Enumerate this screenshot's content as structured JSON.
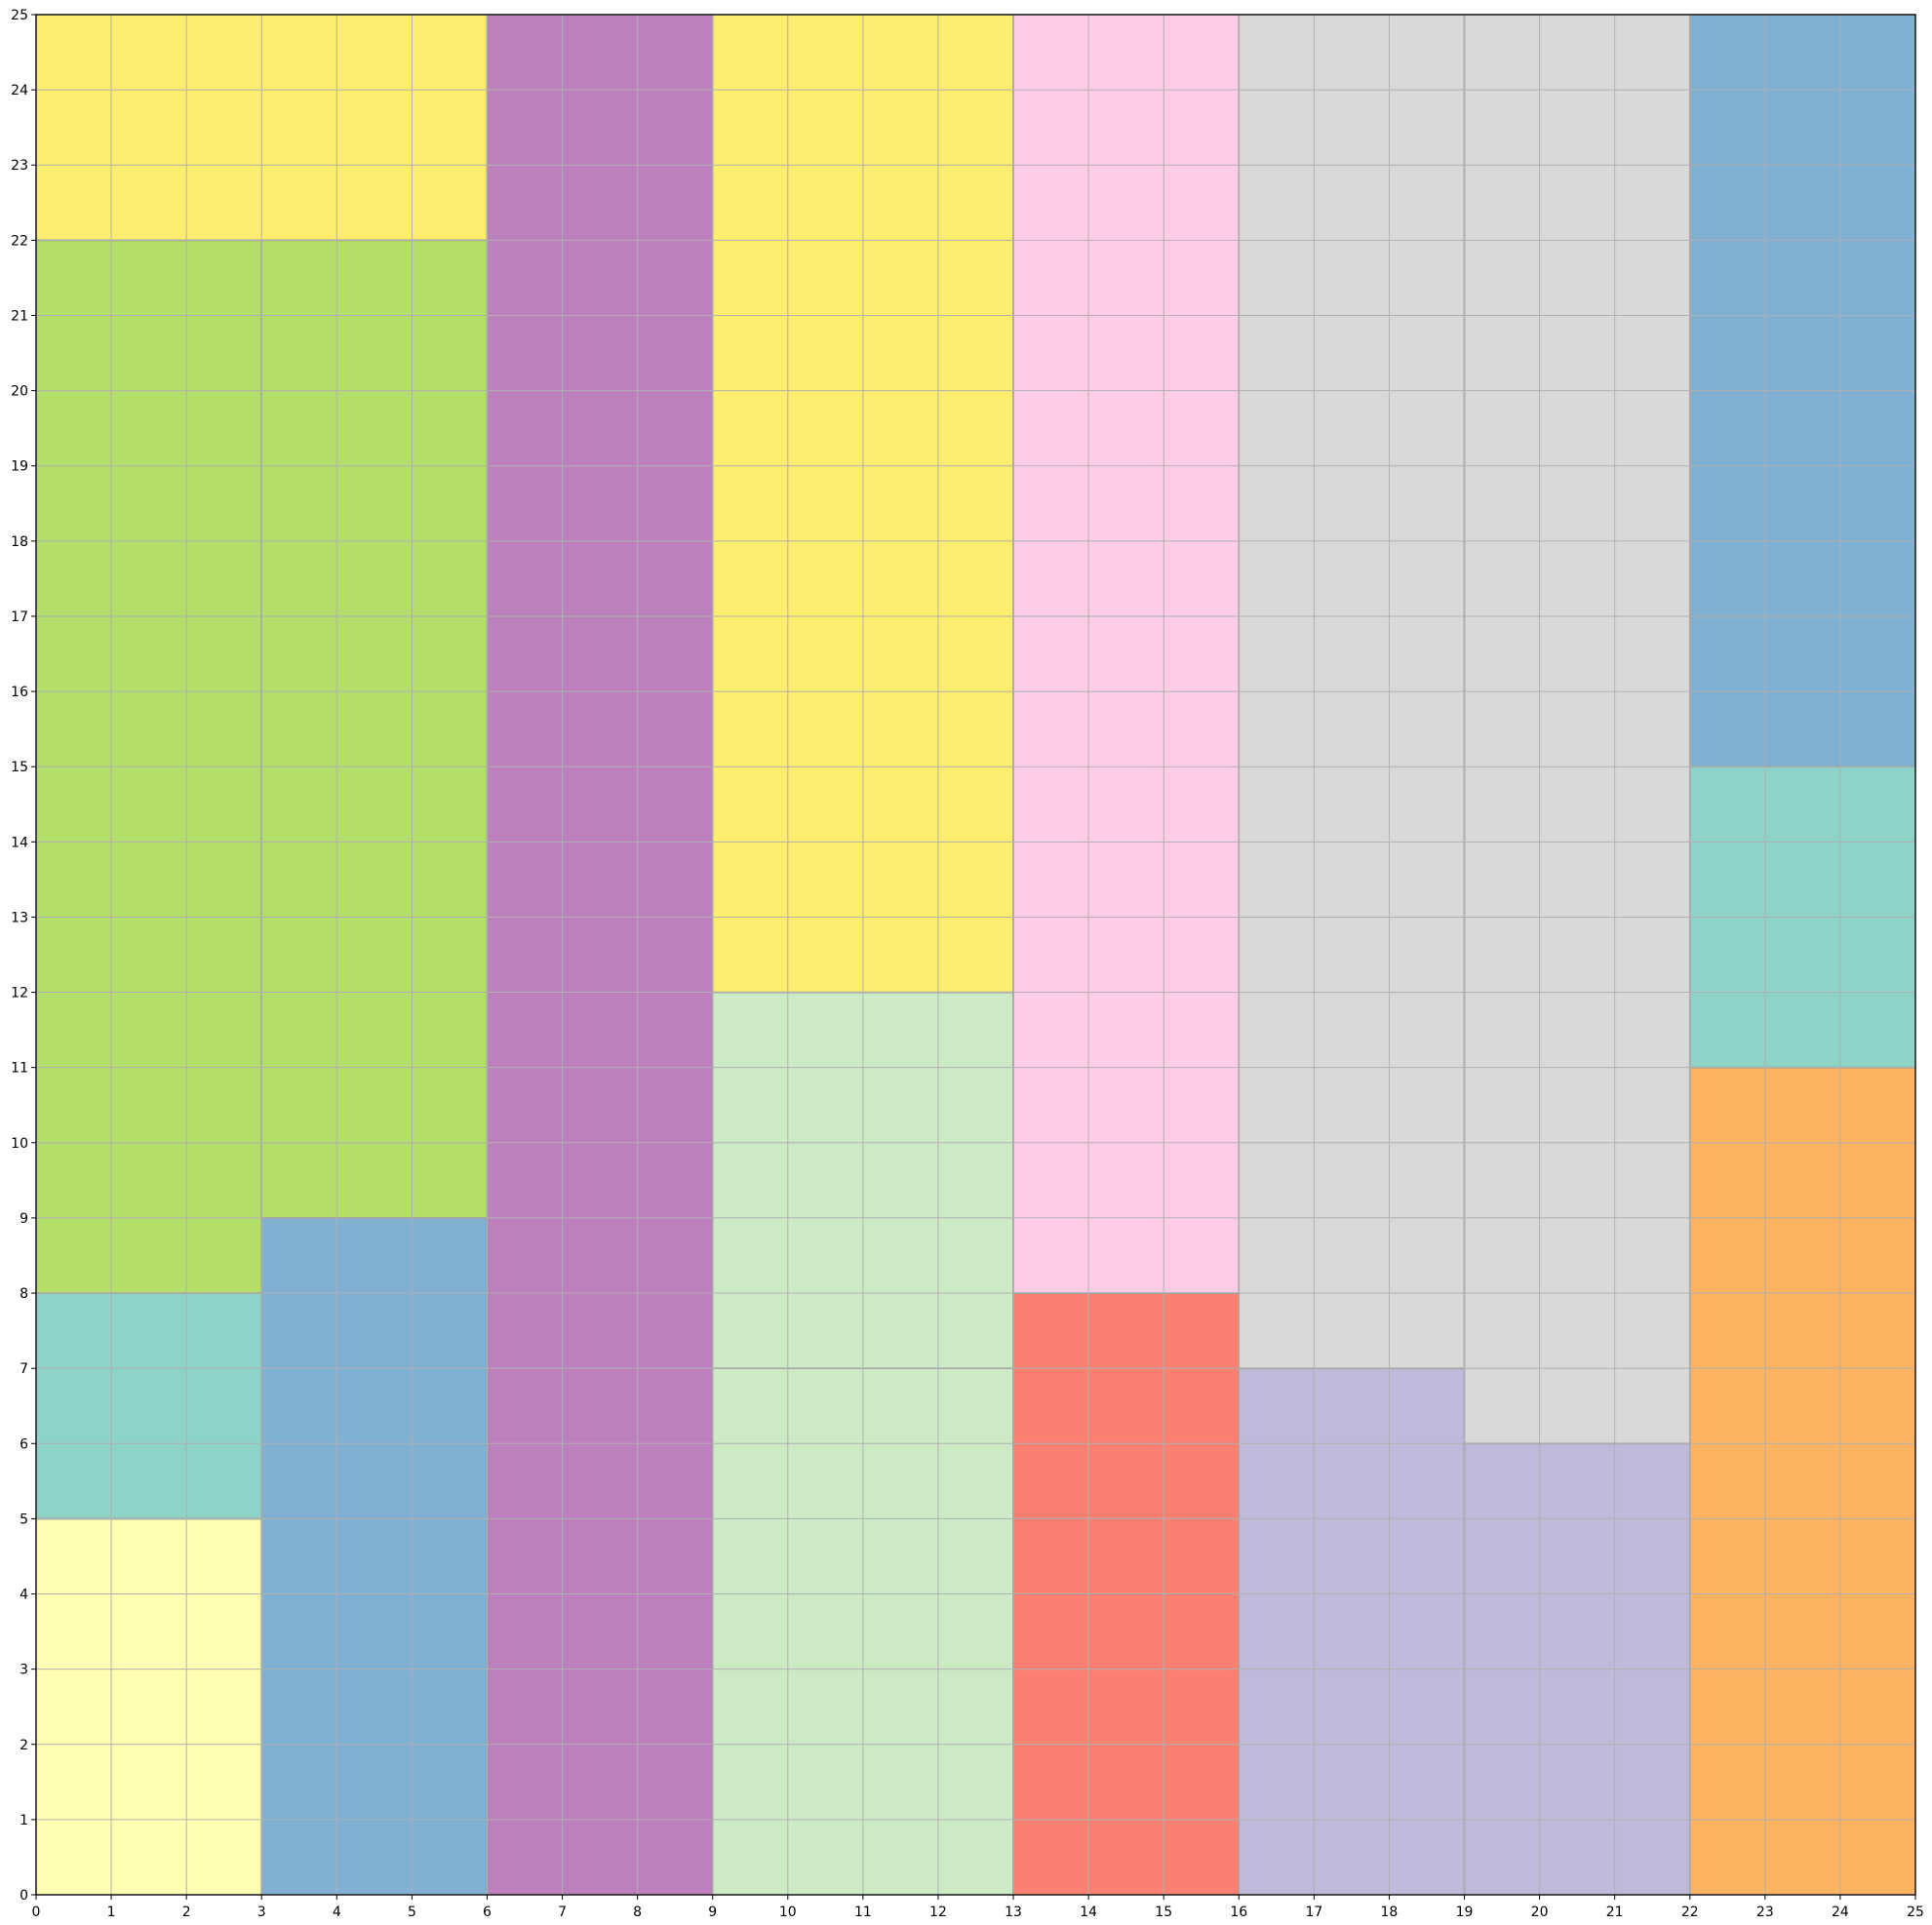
{
  "chart_data": {
    "type": "heatmap",
    "title": "",
    "xlabel": "",
    "ylabel": "",
    "xlim": [
      0,
      25
    ],
    "ylim": [
      0,
      25
    ],
    "grid": true,
    "x_ticks": [
      "0",
      "1",
      "2",
      "3",
      "4",
      "5",
      "6",
      "7",
      "8",
      "9",
      "10",
      "11",
      "12",
      "13",
      "14",
      "15",
      "16",
      "17",
      "18",
      "19",
      "20",
      "21",
      "22",
      "23",
      "24",
      "25"
    ],
    "y_ticks": [
      "0",
      "1",
      "2",
      "3",
      "4",
      "5",
      "6",
      "7",
      "8",
      "9",
      "10",
      "11",
      "12",
      "13",
      "14",
      "15",
      "16",
      "17",
      "18",
      "19",
      "20",
      "21",
      "22",
      "23",
      "24",
      "25"
    ],
    "rectangles": [
      {
        "x0": 0,
        "y0": 0,
        "x1": 3,
        "y1": 5,
        "color": "#ffffb3"
      },
      {
        "x0": 0,
        "y0": 5,
        "x1": 3,
        "y1": 8,
        "color": "#8dd3c7"
      },
      {
        "x0": 0,
        "y0": 8,
        "x1": 3,
        "y1": 22,
        "color": "#b3de69"
      },
      {
        "x0": 0,
        "y0": 22,
        "x1": 6,
        "y1": 25,
        "color": "#ffed6f"
      },
      {
        "x0": 3,
        "y0": 0,
        "x1": 6,
        "y1": 9,
        "color": "#80b1d3"
      },
      {
        "x0": 3,
        "y0": 9,
        "x1": 6,
        "y1": 22,
        "color": "#b3de69"
      },
      {
        "x0": 6,
        "y0": 0,
        "x1": 9,
        "y1": 25,
        "color": "#bc80bd"
      },
      {
        "x0": 9,
        "y0": 0,
        "x1": 13,
        "y1": 7,
        "color": "#ccebc5"
      },
      {
        "x0": 9,
        "y0": 7,
        "x1": 13,
        "y1": 12,
        "color": "#ccebc5"
      },
      {
        "x0": 9,
        "y0": 12,
        "x1": 13,
        "y1": 25,
        "color": "#ffed6f"
      },
      {
        "x0": 13,
        "y0": 0,
        "x1": 16,
        "y1": 8,
        "color": "#fb8072"
      },
      {
        "x0": 13,
        "y0": 8,
        "x1": 16,
        "y1": 25,
        "color": "#fccde5"
      },
      {
        "x0": 16,
        "y0": 0,
        "x1": 19,
        "y1": 7,
        "color": "#bebada"
      },
      {
        "x0": 16,
        "y0": 7,
        "x1": 19,
        "y1": 25,
        "color": "#d9d9d9"
      },
      {
        "x0": 19,
        "y0": 0,
        "x1": 22,
        "y1": 6,
        "color": "#bebada"
      },
      {
        "x0": 19,
        "y0": 6,
        "x1": 22,
        "y1": 25,
        "color": "#d9d9d9"
      },
      {
        "x0": 22,
        "y0": 0,
        "x1": 25,
        "y1": 11,
        "color": "#fdb462"
      },
      {
        "x0": 22,
        "y0": 11,
        "x1": 25,
        "y1": 15,
        "color": "#8dd3c7"
      },
      {
        "x0": 22,
        "y0": 15,
        "x1": 25,
        "y1": 25,
        "color": "#80b1d3"
      }
    ]
  }
}
